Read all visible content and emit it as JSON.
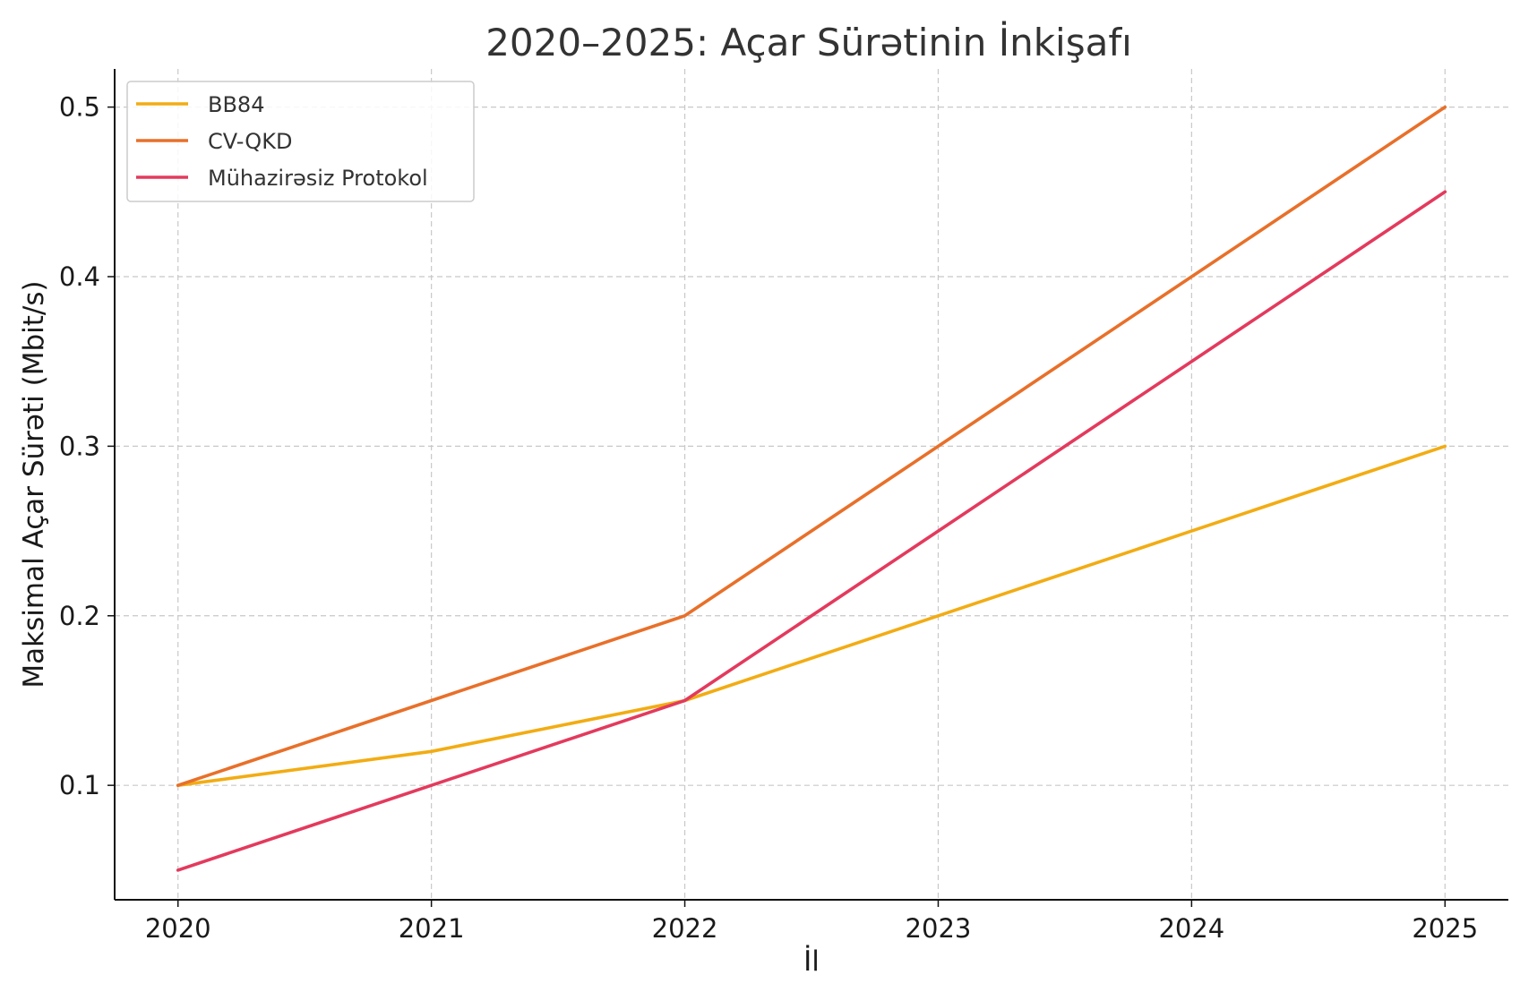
{
  "chart_data": {
    "type": "line",
    "title": "2020–2025: Açar Sürətinin İnkişafı",
    "xlabel": "İl",
    "ylabel": "Maksimal Açar Sürəti (Mbit/s)",
    "x": [
      2020,
      2021,
      2022,
      2023,
      2024,
      2025
    ],
    "x_tick_labels": [
      "2020",
      "2021",
      "2022",
      "2023",
      "2024",
      "2025"
    ],
    "y_ticks": [
      0.1,
      0.2,
      0.3,
      0.4,
      0.5
    ],
    "y_tick_labels": [
      "0.1",
      "0.2",
      "0.3",
      "0.4",
      "0.5"
    ],
    "xlim": [
      2019.75,
      2025.25
    ],
    "ylim": [
      0.0325,
      0.5225
    ],
    "grid": true,
    "legend_position": "top-left",
    "series": [
      {
        "name": "BB84",
        "color": "#f2ac13",
        "values": [
          0.1,
          0.12,
          0.15,
          0.2,
          0.25,
          0.3
        ]
      },
      {
        "name": "CV-QKD",
        "color": "#e8702a",
        "values": [
          0.1,
          0.15,
          0.2,
          0.3,
          0.4,
          0.5
        ]
      },
      {
        "name": "Mühazirəsiz Protokol",
        "color": "#e33a5d",
        "values": [
          0.05,
          0.1,
          0.15,
          0.25,
          0.35,
          0.45
        ]
      }
    ]
  }
}
